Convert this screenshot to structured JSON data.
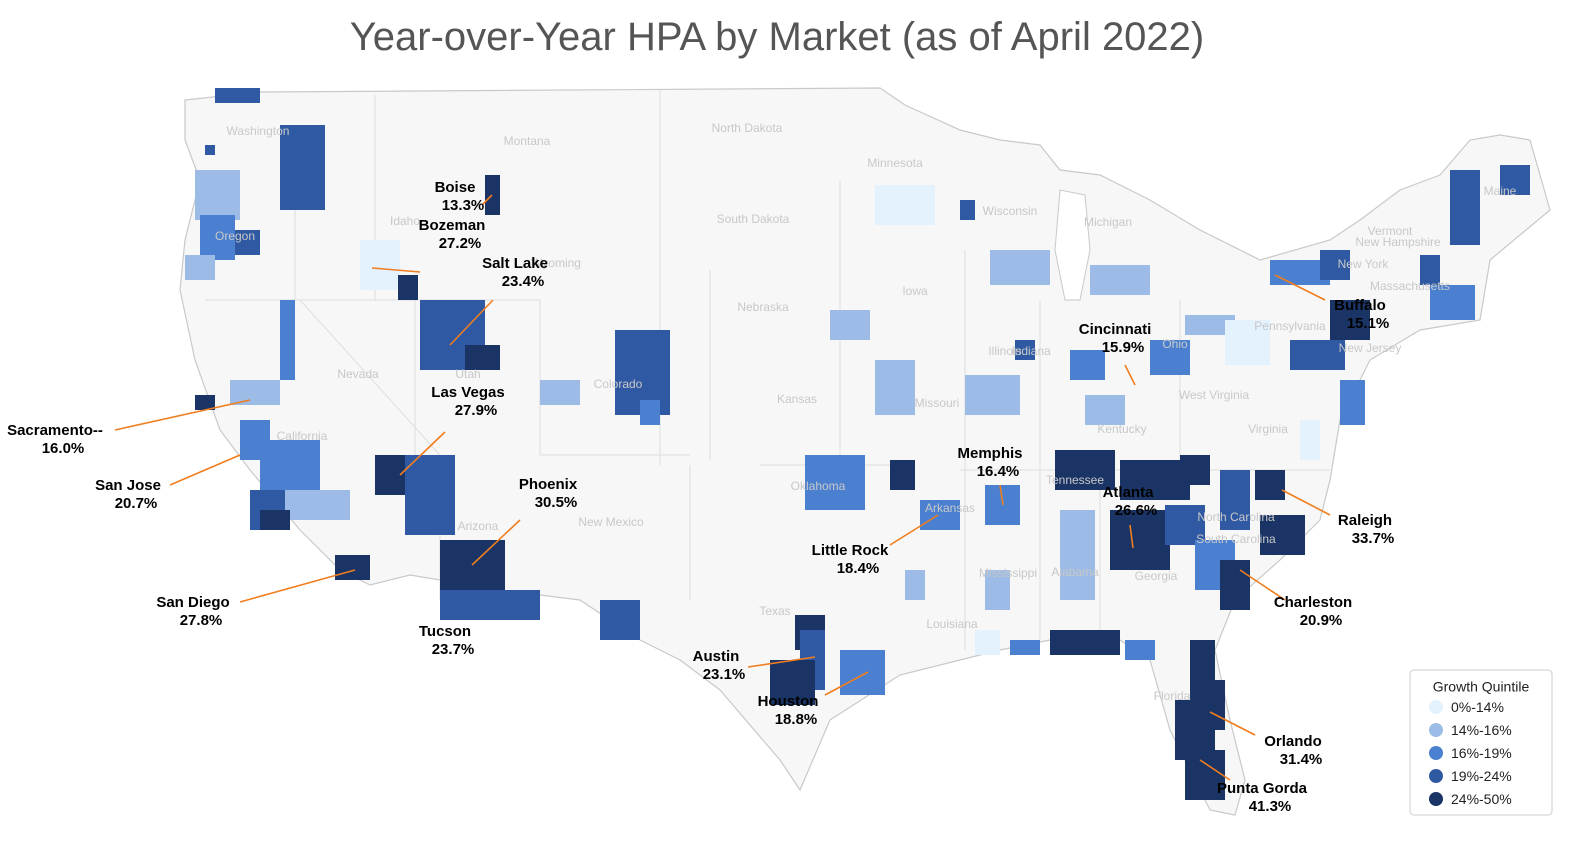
{
  "title": "Year-over-Year HPA by Market (as of April 2022)",
  "states": [
    "Washington",
    "Oregon",
    "Idaho",
    "Montana",
    "North Dakota",
    "Minnesota",
    "South Dakota",
    "Wyoming",
    "Nebraska",
    "Iowa",
    "Nevada",
    "Utah",
    "Colorado",
    "Kansas",
    "Missouri",
    "Illinois",
    "Michigan",
    "Wisconsin",
    "California",
    "Arizona",
    "New Mexico",
    "Texas",
    "Oklahoma",
    "Arkansas",
    "Louisiana",
    "Mississippi",
    "Alabama",
    "Georgia",
    "Tennessee",
    "Kentucky",
    "West Virginia",
    "Virginia",
    "Pennsylvania",
    "New York",
    "New Jersey",
    "Vermont",
    "New Hampshire",
    "Massachusetts",
    "Maine",
    "Florida",
    "North Carolina",
    "South Carolina",
    "Ohio",
    "Indiana"
  ],
  "markets": [
    {
      "name": "Boise",
      "value": "13.3%"
    },
    {
      "name": "Bozeman",
      "value": "27.2%"
    },
    {
      "name": "Salt Lake",
      "value": "23.4%"
    },
    {
      "name": "Las Vegas",
      "value": "27.9%"
    },
    {
      "name": "Phoenix",
      "value": "30.5%"
    },
    {
      "name": "Tucson",
      "value": "23.7%"
    },
    {
      "name": "Sacramento--",
      "value": "16.0%"
    },
    {
      "name": "San Jose",
      "value": "20.7%"
    },
    {
      "name": "San Diego",
      "value": "27.8%"
    },
    {
      "name": "Austin",
      "value": "23.1%"
    },
    {
      "name": "Houston",
      "value": "18.8%"
    },
    {
      "name": "Little Rock",
      "value": "18.4%"
    },
    {
      "name": "Memphis",
      "value": "16.4%"
    },
    {
      "name": "Cincinnati",
      "value": "15.9%"
    },
    {
      "name": "Atlanta",
      "value": "26.6%"
    },
    {
      "name": "Buffalo",
      "value": "15.1%"
    },
    {
      "name": "Raleigh",
      "value": "33.7%"
    },
    {
      "name": "Charleston",
      "value": "20.9%"
    },
    {
      "name": "Orlando",
      "value": "31.4%"
    },
    {
      "name": "Punta Gorda",
      "value": "41.3%"
    }
  ],
  "legend": {
    "title": "Growth Quintile",
    "items": [
      {
        "label": "0%-14%",
        "color": "#e3f2fd"
      },
      {
        "label": "14%-16%",
        "color": "#9cbbe6"
      },
      {
        "label": "16%-19%",
        "color": "#4b80d0"
      },
      {
        "label": "19%-24%",
        "color": "#2f5aa3"
      },
      {
        "label": "24%-50%",
        "color": "#1a3465"
      }
    ]
  }
}
